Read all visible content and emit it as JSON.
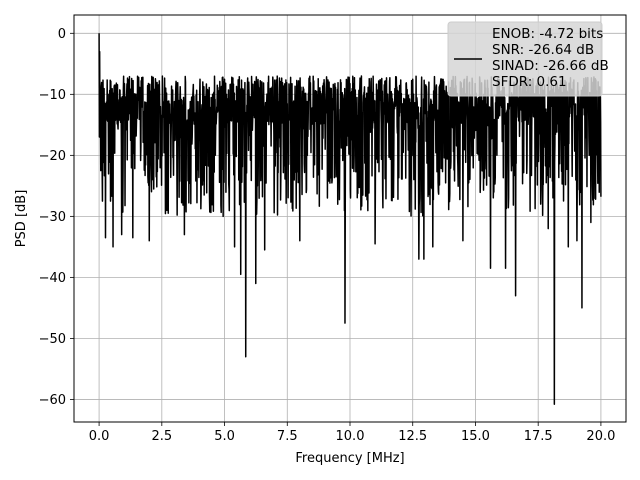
{
  "chart_data": {
    "type": "line",
    "xlabel": "Frequency [MHz]",
    "ylabel": "PSD [dB]",
    "xlim": [
      -1.0,
      21.0
    ],
    "ylim": [
      -63.7,
      3.0
    ],
    "xticks": [
      0.0,
      2.5,
      5.0,
      7.5,
      10.0,
      12.5,
      15.0,
      17.5,
      20.0
    ],
    "xtick_labels": [
      "0.0",
      "2.5",
      "5.0",
      "7.5",
      "10.0",
      "12.5",
      "15.0",
      "17.5",
      "20.0"
    ],
    "yticks": [
      0,
      -10,
      -20,
      -30,
      -40,
      -50,
      -60
    ],
    "ytick_labels": [
      "0",
      "−10",
      "−20",
      "−30",
      "−40",
      "−50",
      "−60"
    ],
    "grid": true,
    "legend": {
      "placement": "top-right",
      "entries": [
        "ENOB: -4.72 bits",
        "SNR: -26.64 dB",
        "SINAD: -26.66 dB",
        "SFDR: 0.61"
      ]
    },
    "series": [
      {
        "color": "#000000",
        "x_range": [
          0.0,
          20.0
        ],
        "typical_band_db": [
          -25,
          -7
        ],
        "peak_db": 0.0,
        "notable_dips": [
          {
            "x": 0.25,
            "y": -33.5
          },
          {
            "x": 0.55,
            "y": -35.0
          },
          {
            "x": 0.9,
            "y": -33.0
          },
          {
            "x": 1.35,
            "y": -33.5
          },
          {
            "x": 2.0,
            "y": -34.0
          },
          {
            "x": 3.4,
            "y": -33.0
          },
          {
            "x": 5.4,
            "y": -35.0
          },
          {
            "x": 5.65,
            "y": -39.5
          },
          {
            "x": 5.85,
            "y": -53.0
          },
          {
            "x": 6.25,
            "y": -41.0
          },
          {
            "x": 6.6,
            "y": -35.5
          },
          {
            "x": 8.0,
            "y": -34.0
          },
          {
            "x": 9.8,
            "y": -47.5
          },
          {
            "x": 11.0,
            "y": -34.5
          },
          {
            "x": 12.75,
            "y": -37.0
          },
          {
            "x": 12.95,
            "y": -37.0
          },
          {
            "x": 13.3,
            "y": -35.0
          },
          {
            "x": 14.5,
            "y": -34.0
          },
          {
            "x": 15.6,
            "y": -38.5
          },
          {
            "x": 16.2,
            "y": -38.5
          },
          {
            "x": 16.6,
            "y": -43.0
          },
          {
            "x": 17.9,
            "y": -32.0
          },
          {
            "x": 18.15,
            "y": -60.8
          },
          {
            "x": 18.7,
            "y": -35.0
          },
          {
            "x": 19.05,
            "y": -34.0
          },
          {
            "x": 19.25,
            "y": -45.0
          },
          {
            "x": 19.6,
            "y": -31.0
          }
        ]
      }
    ]
  }
}
